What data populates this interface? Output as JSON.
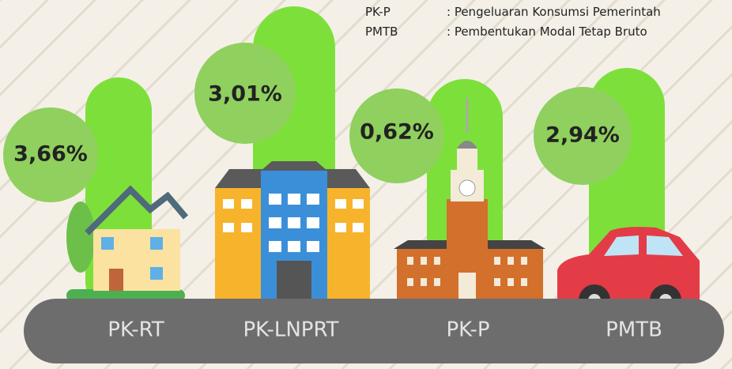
{
  "legend": [
    {
      "abbr": "PK-P",
      "desc": ": Pengeluaran Konsumsi Pemerintah"
    },
    {
      "abbr": "PMTB",
      "desc": ": Pembentukan Modal Tetap Bruto"
    }
  ],
  "items": [
    {
      "label": "PK-RT",
      "value": "3,66%"
    },
    {
      "label": "PK-LNPRT",
      "value": "3,01%"
    },
    {
      "label": "PK-P",
      "value": "0,62%"
    },
    {
      "label": "PMTB",
      "value": "2,94%"
    }
  ]
}
